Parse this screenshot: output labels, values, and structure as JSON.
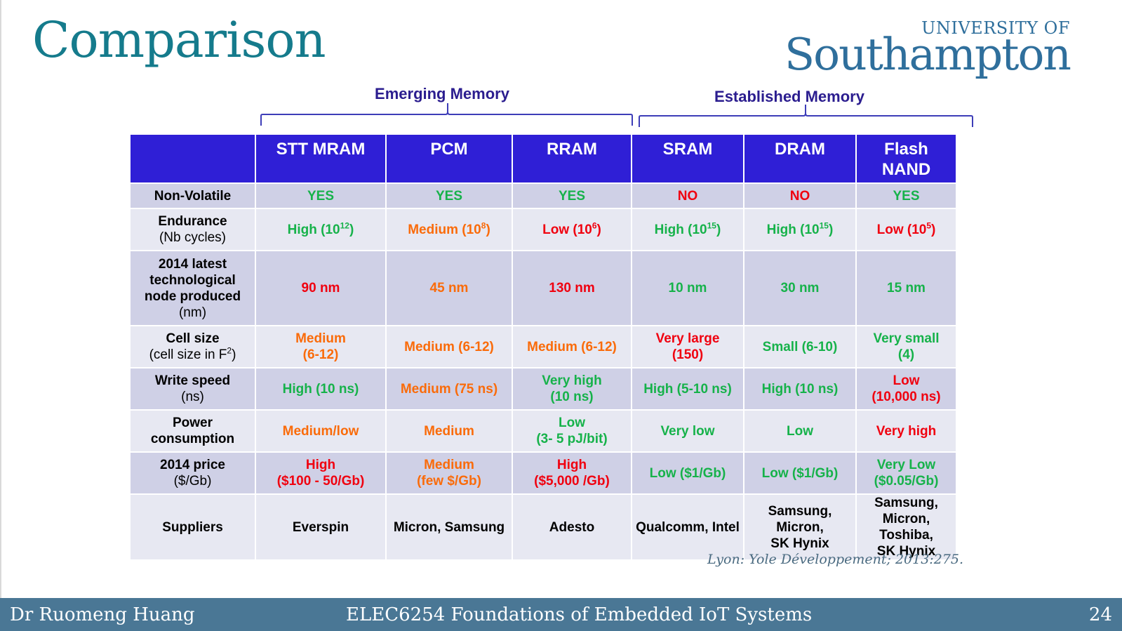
{
  "slide": {
    "title": "Comparison",
    "logo_top": "UNIVERSITY OF",
    "logo_main": "Southampton",
    "citation": "Lyon: Yole Développement; 2013:275."
  },
  "groups": {
    "emerging": "Emerging Memory",
    "established": "Established Memory"
  },
  "table": {
    "headers": [
      "",
      "STT MRAM",
      "PCM",
      "RRAM",
      "SRAM",
      "DRAM",
      "Flash\nNAND"
    ],
    "rows": {
      "nonvolatile": {
        "label": "Non-Volatile",
        "cells": [
          "YES",
          "YES",
          "YES",
          "NO",
          "NO",
          "YES"
        ]
      },
      "endurance": {
        "label": "Endurance",
        "sub": "(Nb cycles)",
        "cells": [
          {
            "text": "High (10",
            "exp": "12",
            "close": ")"
          },
          {
            "text": "Medium (10",
            "exp": "8",
            "close": ")"
          },
          {
            "text": "Low (10",
            "exp": "6",
            "close": ")"
          },
          {
            "text": "High (10",
            "exp": "15",
            "close": ")"
          },
          {
            "text": "High (10",
            "exp": "15",
            "close": ")"
          },
          {
            "text": "Low (10",
            "exp": "5",
            "close": ")"
          }
        ]
      },
      "node": {
        "label": "2014 latest technological node produced",
        "sub": "(nm)",
        "cells": [
          "90 nm",
          "45 nm",
          "130 nm",
          "10 nm",
          "30 nm",
          "15 nm"
        ]
      },
      "cellsize": {
        "label": "Cell size",
        "sub_a": "(cell size in F",
        "sub_exp": "2",
        "sub_b": ")",
        "cells": [
          "Medium",
          "(6-12)",
          "Medium (6-12)",
          "Medium (6-12)",
          "Very large",
          "(150)",
          "Small (6-10)",
          "Very small",
          "(4)"
        ]
      },
      "write": {
        "label": "Write speed",
        "sub": "(ns)",
        "cells": [
          "High (10 ns)",
          "Medium (75 ns)",
          "Very high",
          "(10 ns)",
          "High (5-10 ns)",
          "High (10 ns)",
          "Low",
          "(10,000 ns)"
        ]
      },
      "power": {
        "label": "Power consumption",
        "cells": [
          "Medium/low",
          "Medium",
          "Low",
          "(3- 5 pJ/bit)",
          "Very low",
          "Low",
          "Very high"
        ]
      },
      "price": {
        "label": "2014 price",
        "sub": "($/Gb)",
        "cells": [
          "High",
          "($100 - 50/Gb)",
          "Medium",
          "(few $/Gb)",
          "High",
          "($5,000 /Gb)",
          "Low ($1/Gb)",
          "Low ($1/Gb)",
          "Very Low",
          "($0.05/Gb)"
        ]
      },
      "suppliers": {
        "label": "Suppliers",
        "cells": [
          "Everspin",
          "Micron, Samsung",
          "Adesto",
          "Qualcomm, Intel",
          "Samsung, Micron,",
          "SK Hynix",
          "Samsung,",
          "Micron, Toshiba,",
          "SK Hynix"
        ]
      }
    }
  },
  "colors": {
    "header_bg": "#2f1fd6",
    "row_dark": "#cfd0e6",
    "row_light": "#e7e8f2",
    "good": "#16b24a",
    "medium": "#fa6b0a",
    "bad": "#f0000f",
    "title": "#157b8c",
    "footer_bg": "#4a7795"
  },
  "footer": {
    "author": "Dr Ruomeng Huang",
    "course": "ELEC6254 Foundations of Embedded IoT Systems",
    "page": "24"
  }
}
